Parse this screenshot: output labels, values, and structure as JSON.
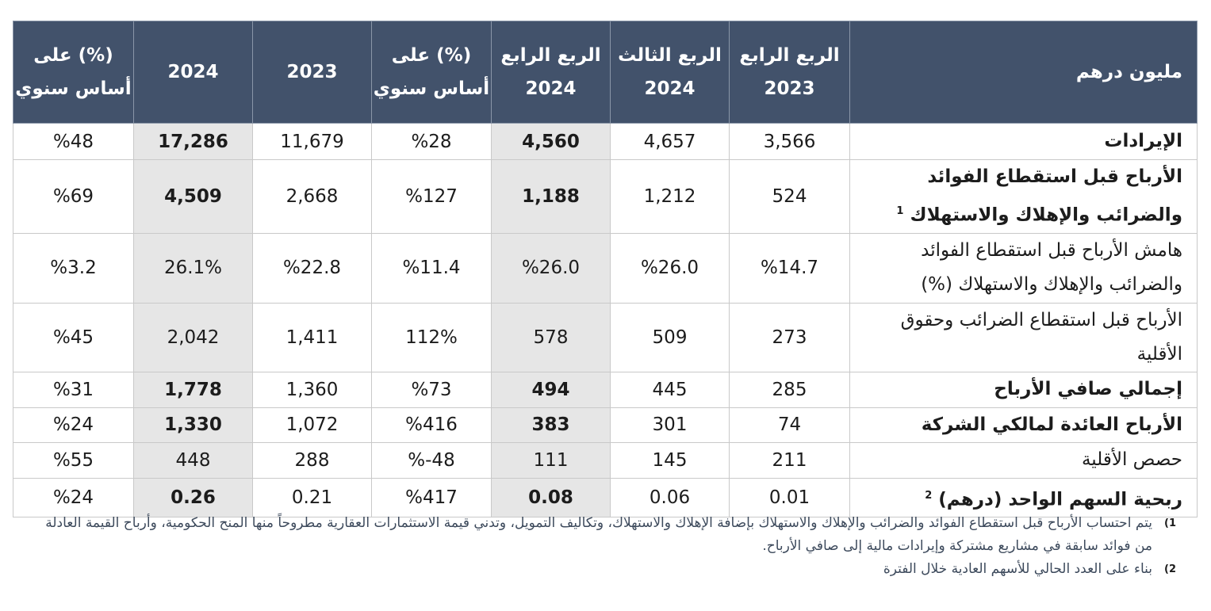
{
  "table": {
    "headers": [
      "مليون درهم",
      "الربع الرابع 2023",
      "الربع الثالث 2024",
      "الربع الرابع 2024",
      "(%) على أساس سنوي",
      "2023",
      "2024",
      "(%) على أساس سنوي"
    ],
    "rows": [
      {
        "label": "الإيرادات",
        "sup": "",
        "bold": true,
        "values": [
          "3,566",
          "4,657",
          "4,560",
          "%28",
          "11,679",
          "17,286",
          "%48"
        ]
      },
      {
        "label": "الأرباح قبل استقطاع الفوائد والضرائب والإهلاك والاستهلاك",
        "sup": "1",
        "bold": true,
        "values": [
          "524",
          "1,212",
          "1,188",
          "%127",
          "2,668",
          "4,509",
          "%69"
        ]
      },
      {
        "label": "هامش الأرباح قبل استقطاع الفوائد والضرائب والإهلاك والاستهلاك (%)",
        "sup": "",
        "bold": false,
        "values": [
          "%14.7",
          "%26.0",
          "%26.0",
          "%11.4",
          "%22.8",
          "26.1%",
          "%3.2"
        ]
      },
      {
        "label": "الأرباح قبل استقطاع الضرائب وحقوق الأقلية",
        "sup": "",
        "bold": false,
        "values": [
          "273",
          "509",
          "578",
          "112%",
          "1,411",
          "2,042",
          "%45"
        ]
      },
      {
        "label": "إجمالي صافي الأرباح",
        "sup": "",
        "bold": true,
        "values": [
          "285",
          "445",
          "494",
          "%73",
          "1,360",
          "1,778",
          "%31"
        ]
      },
      {
        "label": "الأرباح العائدة لمالكي الشركة",
        "sup": "",
        "bold": true,
        "values": [
          "74",
          "301",
          "383",
          "%416",
          "1,072",
          "1,330",
          "%24"
        ]
      },
      {
        "label": "حصص الأقلية",
        "sup": "",
        "bold": false,
        "values": [
          "211",
          "145",
          "111",
          "%-48",
          "288",
          "448",
          "%55"
        ]
      },
      {
        "label": "ربحية السهم الواحد (درهم)",
        "sup": "2",
        "bold": true,
        "values": [
          "0.01",
          "0.06",
          "0.08",
          "%417",
          "0.21",
          "0.26",
          "%24"
        ]
      }
    ]
  },
  "footnotes": [
    {
      "num": "1)",
      "text": "يتم احتساب الأرباح قبل استقطاع الفوائد والضرائب والإهلاك والاستهلاك بإضافة الإهلاك والاستهلاك، وتكاليف التمويل، وتدني قيمة الاستثمارات العقارية مطروحاً منها المنح الحكومية، وأرباح القيمة العادلة من فوائد سابقة في مشاريع مشتركة وإيرادات مالية إلى صافي الأرباح."
    },
    {
      "num": "2)",
      "text": "بناء على العدد الحالي للأسهم العادية خلال الفترة"
    }
  ],
  "colors": {
    "header_bg": "#42526b",
    "shade": "#e6e6e6",
    "note_text": "#3d4a5c"
  }
}
